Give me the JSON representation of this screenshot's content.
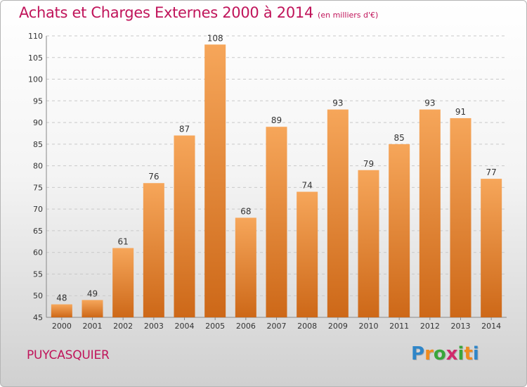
{
  "header": {
    "title": "Achats et Charges Externes 2000 à 2014",
    "unit": "(en milliers d'€)"
  },
  "footer": {
    "commune": "PUYCASQUIER"
  },
  "logo": {
    "text": "Proxiti",
    "letter_colors": [
      "#2f86c8",
      "#ef8b1e",
      "#3aa63a",
      "#d02a6b",
      "#3aa63a",
      "#ef8b1e",
      "#2f86c8"
    ]
  },
  "colors": {
    "title": "#c0145a",
    "bar_top": "#f6a65a",
    "bar_bottom": "#cd6818"
  },
  "chart_data": {
    "type": "bar",
    "title": "Achats et Charges Externes 2000 à 2014",
    "subtitle": "(en milliers d'€)",
    "xlabel": "",
    "ylabel": "",
    "categories": [
      "2000",
      "2001",
      "2002",
      "2003",
      "2004",
      "2005",
      "2006",
      "2007",
      "2008",
      "2009",
      "2010",
      "2011",
      "2012",
      "2013",
      "2014"
    ],
    "values": [
      48,
      49,
      61,
      76,
      87,
      108,
      68,
      89,
      74,
      93,
      79,
      85,
      93,
      91,
      77
    ],
    "ylim": [
      45,
      110
    ],
    "yticks": [
      45,
      50,
      55,
      60,
      65,
      70,
      75,
      80,
      85,
      90,
      95,
      100,
      105,
      110
    ],
    "grid": true,
    "data_labels": true
  }
}
